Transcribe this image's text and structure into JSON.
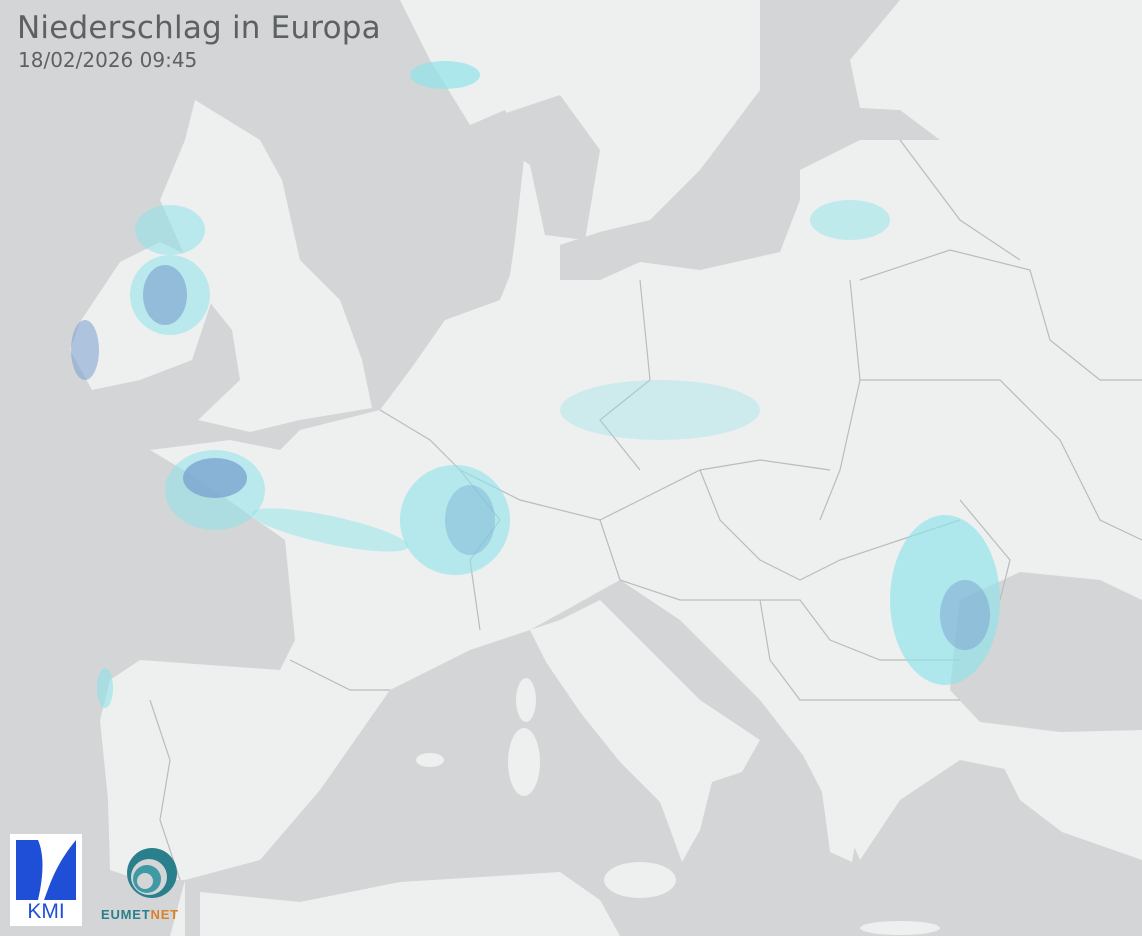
{
  "header": {
    "title": "Niederschlag in Europa",
    "timestamp": "18/02/2026 09:45"
  },
  "logos": {
    "kmi": "KMI",
    "eumetnet_part1": "EUMET",
    "eumetnet_part2": "NET"
  },
  "colors": {
    "sea": "#d3d5d6",
    "land": "#eef0ef",
    "border": "#b9bcbd",
    "precip_light": "#8ee3ea",
    "precip_moderate": "#7a9fd0",
    "kmi_blue": "#1f4fd6",
    "eumetnet_teal": "#2a7f8c",
    "eumetnet_orange": "#d9822b"
  }
}
